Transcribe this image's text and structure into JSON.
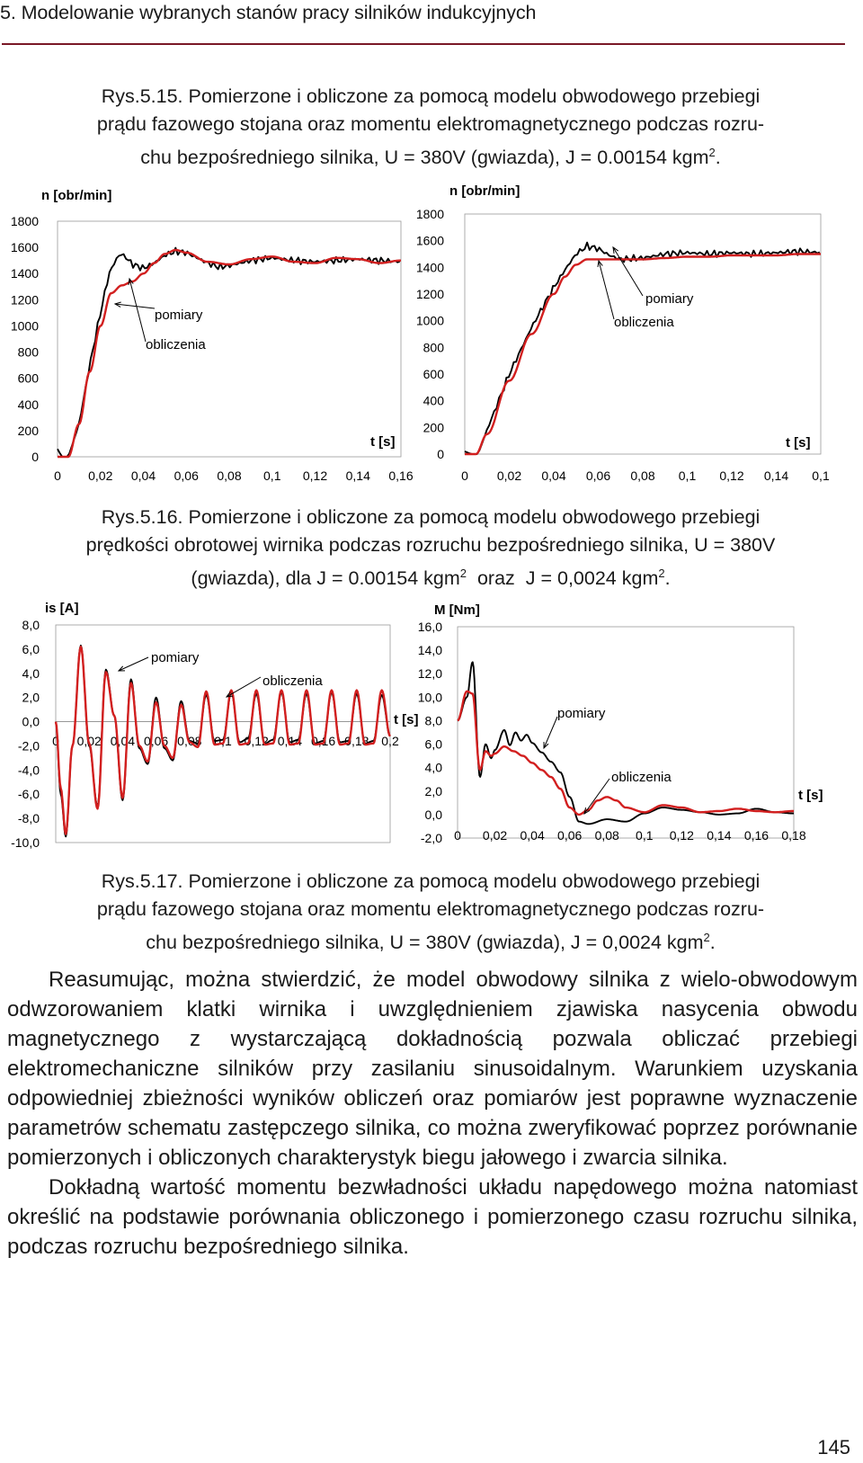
{
  "header": {
    "chapter_title": "5. Modelowanie wybranych stanów pracy silników indukcyjnych"
  },
  "captions": {
    "fig15": [
      "Rys.5.15. Pomierzone i obliczone za pomocą modelu obwodowego przebiegi",
      "prądu fazowego stojana oraz momentu elektromagnetycznego podczas rozru-",
      "chu bezpośredniego silnika, U = 380V (gwiazda), J = 0.00154 kgm",
      "2",
      "."
    ],
    "fig16": [
      "Rys.5.16. Pomierzone i obliczone za pomocą modelu obwodowego przebiegi",
      "prędkości obrotowej wirnika podczas rozruchu bezpośredniego silnika, U = 380V",
      "(gwiazda), dla J = 0.00154 kgm",
      "2",
      "  oraz  J = 0,0024 kgm",
      "2",
      "."
    ],
    "fig17": [
      "Rys.5.17. Pomierzone i obliczone za pomocą modelu obwodowego przebiegi",
      "prądu fazowego stojana oraz momentu elektromagnetycznego podczas rozru-",
      "chu bezpośredniego silnika, U = 380V (gwiazda), J = 0,0024 kgm",
      "2",
      "."
    ]
  },
  "body": {
    "paragraphs": [
      "Reasumując, można stwierdzić, że model obwodowy silnika z wielo-obwodowym odwzorowaniem klatki wirnika i uwzględnieniem zjawiska nasycenia obwodu magnetycznego z wystarczającą dokładnością pozwala obliczać przebiegi elektromechaniczne silników przy zasilaniu sinusoidalnym. Warunkiem uzyskania odpowiedniej zbieżności wyników obliczeń oraz pomiarów jest poprawne wyznaczenie parametrów schematu zastępczego silnika, co można zweryfikować poprzez porównanie pomierzonych i obliczonych charakterystyk biegu jałowego i zwarcia silnika.",
      "Dokładną wartość momentu bezwładności układu napędowego można natomiast określić na podstawie porównania obliczonego i pomierzonego czasu rozruchu silnika, podczas rozruchu bezpośredniego silnika."
    ]
  },
  "page_number": "145",
  "colors": {
    "measured": "#000000",
    "computed": "#d21f1f",
    "rule": "#7a1826"
  },
  "chart_data": [
    {
      "id": "speed-J1",
      "type": "line",
      "ylabel": "n [obr/min]",
      "xlabel": "t [s]",
      "yticks": [
        "1800",
        "1600",
        "1400",
        "1200",
        "1000",
        "800",
        "600",
        "400",
        "200",
        "0"
      ],
      "xticks": [
        "0",
        "0,02",
        "0,04",
        "0,06",
        "0,08",
        "0,1",
        "0,12",
        "0,14",
        "0,16"
      ],
      "xlim": [
        0,
        0.16
      ],
      "ylim": [
        0,
        1800
      ],
      "annotations": [
        "pomiary",
        "obliczenia"
      ],
      "series": [
        {
          "name": "pomiary",
          "color": "#000000",
          "x": [
            0,
            0.002,
            0.005,
            0.01,
            0.015,
            0.02,
            0.024,
            0.028,
            0.03,
            0.032,
            0.035,
            0.04,
            0.045,
            0.05,
            0.055,
            0.06,
            0.065,
            0.07,
            0.075,
            0.08,
            0.09,
            0.1,
            0.11,
            0.12,
            0.13,
            0.14,
            0.15,
            0.16
          ],
          "y": [
            60,
            0,
            0,
            250,
            700,
            1100,
            1400,
            1530,
            1550,
            1520,
            1470,
            1440,
            1480,
            1540,
            1570,
            1560,
            1520,
            1480,
            1450,
            1460,
            1500,
            1520,
            1500,
            1490,
            1500,
            1510,
            1500,
            1490
          ]
        },
        {
          "name": "obliczenia",
          "color": "#d21f1f",
          "x": [
            0,
            0.005,
            0.01,
            0.015,
            0.02,
            0.025,
            0.03,
            0.035,
            0.04,
            0.045,
            0.05,
            0.055,
            0.06,
            0.07,
            0.08,
            0.09,
            0.1,
            0.11,
            0.12,
            0.13,
            0.14,
            0.15,
            0.16
          ],
          "y": [
            0,
            0,
            250,
            650,
            1000,
            1250,
            1310,
            1340,
            1400,
            1480,
            1550,
            1580,
            1560,
            1490,
            1470,
            1510,
            1530,
            1490,
            1480,
            1520,
            1510,
            1480,
            1500
          ]
        }
      ]
    },
    {
      "id": "speed-J2",
      "type": "line",
      "ylabel": "n [obr/min]",
      "xlabel": "t [s]",
      "yticks": [
        "1800",
        "1600",
        "1400",
        "1200",
        "1000",
        "800",
        "600",
        "400",
        "200",
        "0"
      ],
      "xticks": [
        "0",
        "0,02",
        "0,04",
        "0,06",
        "0,08",
        "0,1",
        "0,12",
        "0,14",
        "0,1"
      ],
      "xlim": [
        0,
        0.16
      ],
      "ylim": [
        0,
        1800
      ],
      "annotations": [
        "pomiary",
        "obliczenia"
      ],
      "series": [
        {
          "name": "pomiary",
          "color": "#000000",
          "x": [
            0,
            0.003,
            0.006,
            0.01,
            0.02,
            0.03,
            0.04,
            0.045,
            0.05,
            0.055,
            0.06,
            0.065,
            0.07,
            0.08,
            0.09,
            0.1,
            0.11,
            0.12,
            0.13,
            0.14,
            0.15,
            0.16
          ],
          "y": [
            20,
            0,
            0,
            180,
            600,
            950,
            1250,
            1380,
            1500,
            1560,
            1540,
            1490,
            1460,
            1470,
            1500,
            1510,
            1500,
            1510,
            1500,
            1510,
            1520,
            1510
          ]
        },
        {
          "name": "obliczenia",
          "color": "#d21f1f",
          "x": [
            0,
            0.005,
            0.01,
            0.02,
            0.03,
            0.04,
            0.045,
            0.05,
            0.055,
            0.06,
            0.07,
            0.08,
            0.09,
            0.1,
            0.11,
            0.12,
            0.13,
            0.14,
            0.15,
            0.16
          ],
          "y": [
            0,
            0,
            150,
            550,
            900,
            1200,
            1330,
            1420,
            1460,
            1460,
            1460,
            1460,
            1470,
            1480,
            1480,
            1490,
            1490,
            1490,
            1500,
            1500
          ]
        }
      ]
    },
    {
      "id": "current-J2",
      "type": "line",
      "ylabel": "is [A]",
      "xlabel": "t [s]",
      "yticks": [
        "8,0",
        "6,0",
        "4,0",
        "2,0",
        "0,0",
        "-2,0",
        "-4,0",
        "-6,0",
        "-8,0",
        "-10,0"
      ],
      "xticks": [
        "0",
        "0,02",
        "0,04",
        "0,06",
        "0,08",
        "0,1",
        "0,12",
        "0,14",
        "0,16",
        "0,18",
        "0,2"
      ],
      "xlim": [
        0,
        0.2
      ],
      "ylim": [
        -10,
        8
      ],
      "annotations": [
        "pomiary",
        "obliczenia"
      ],
      "series": [
        {
          "name": "pomiary",
          "color": "#000000",
          "x": [
            0,
            0.003,
            0.006,
            0.01,
            0.015,
            0.02,
            0.025,
            0.03,
            0.035,
            0.04,
            0.045,
            0.05,
            0.055,
            0.06,
            0.065,
            0.07,
            0.075,
            0.08,
            0.085,
            0.09,
            0.095,
            0.1,
            0.105,
            0.11,
            0.115,
            0.12,
            0.125,
            0.13,
            0.135,
            0.14,
            0.145,
            0.15,
            0.155,
            0.16,
            0.165,
            0.17,
            0.175,
            0.18,
            0.185,
            0.19,
            0.195,
            0.2
          ],
          "y": [
            0,
            -6,
            -9.5,
            -2,
            6.3,
            -2,
            -7,
            4.3,
            0.5,
            -6.5,
            3.5,
            -2.2,
            -3.5,
            2,
            -2.2,
            -3.2,
            1.7,
            -1.6,
            -1.8,
            2.2,
            -1.6,
            -1.5,
            2.4,
            -1.7,
            -1.4,
            2.3,
            -1.8,
            -1.5,
            2.4,
            -1.7,
            -1.5,
            2.3,
            -1.8,
            -1.6,
            2.4,
            -1.7,
            -1.6,
            2.3,
            -1.8,
            -1.6,
            2.2,
            -1.2
          ]
        },
        {
          "name": "obliczenia",
          "color": "#d21f1f",
          "x": [
            0,
            0.003,
            0.006,
            0.01,
            0.015,
            0.02,
            0.025,
            0.03,
            0.035,
            0.04,
            0.045,
            0.05,
            0.055,
            0.06,
            0.065,
            0.07,
            0.075,
            0.08,
            0.085,
            0.09,
            0.095,
            0.1,
            0.105,
            0.11,
            0.115,
            0.12,
            0.125,
            0.13,
            0.135,
            0.14,
            0.145,
            0.15,
            0.155,
            0.16,
            0.165,
            0.17,
            0.175,
            0.18,
            0.185,
            0.19,
            0.195,
            0.2
          ],
          "y": [
            0,
            -5.5,
            -9.3,
            -2,
            6.2,
            -1.8,
            -7.2,
            4.1,
            0.5,
            -6.3,
            3.2,
            -2,
            -3.3,
            1.6,
            -2,
            -3,
            1.4,
            -1.7,
            -2.1,
            2.5,
            -1.9,
            -1.8,
            2.6,
            -1.9,
            -1.8,
            2.6,
            -1.9,
            -1.8,
            2.6,
            -1.9,
            -1.8,
            2.6,
            -1.9,
            -1.8,
            2.6,
            -1.9,
            -1.8,
            2.6,
            -1.9,
            -1.8,
            2.6,
            -1.2
          ]
        }
      ]
    },
    {
      "id": "torque-J2",
      "type": "line",
      "ylabel": "M [Nm]",
      "xlabel": "t [s]",
      "yticks": [
        "16,0",
        "14,0",
        "12,0",
        "10,0",
        "8,0",
        "6,0",
        "4,0",
        "2,0",
        "0,0",
        "-2,0"
      ],
      "xticks": [
        "0",
        "0,02",
        "0,04",
        "0,06",
        "0,08",
        "0,1",
        "0,12",
        "0,14",
        "0,16",
        "0,18"
      ],
      "xlim": [
        0,
        0.18
      ],
      "ylim": [
        -2,
        16
      ],
      "annotations": [
        "pomiary",
        "obliczenia"
      ],
      "series": [
        {
          "name": "pomiary",
          "color": "#000000",
          "x": [
            0,
            0.005,
            0.008,
            0.012,
            0.015,
            0.018,
            0.02,
            0.025,
            0.028,
            0.031,
            0.034,
            0.037,
            0.04,
            0.045,
            0.05,
            0.055,
            0.06,
            0.065,
            0.07,
            0.08,
            0.09,
            0.1,
            0.11,
            0.12,
            0.13,
            0.14,
            0.15,
            0.16,
            0.17,
            0.18
          ],
          "y": [
            8,
            10,
            13,
            3.2,
            6,
            4.8,
            5.5,
            7.2,
            5.9,
            7.0,
            6.3,
            6.8,
            6.1,
            5.3,
            4.5,
            3.6,
            1.5,
            -0.6,
            -0.8,
            -0.4,
            -0.6,
            0.1,
            0.6,
            0.4,
            0.2,
            0,
            0.1,
            0.5,
            0.2,
            0.1
          ]
        },
        {
          "name": "obliczenia",
          "color": "#d21f1f",
          "x": [
            0,
            0.005,
            0.008,
            0.012,
            0.015,
            0.018,
            0.02,
            0.025,
            0.03,
            0.035,
            0.04,
            0.045,
            0.05,
            0.055,
            0.06,
            0.065,
            0.07,
            0.075,
            0.08,
            0.085,
            0.09,
            0.1,
            0.11,
            0.12,
            0.13,
            0.14,
            0.15,
            0.16,
            0.17,
            0.18
          ],
          "y": [
            8,
            10.5,
            10.3,
            3.8,
            5.4,
            5,
            5.2,
            5.8,
            5.4,
            5,
            4.4,
            3.8,
            3.2,
            2.2,
            0.6,
            0,
            0.4,
            1.2,
            1.5,
            1.2,
            0.6,
            0.2,
            0.8,
            0.6,
            0.2,
            0.3,
            0.5,
            0.3,
            0.2,
            0.3
          ]
        }
      ]
    }
  ]
}
